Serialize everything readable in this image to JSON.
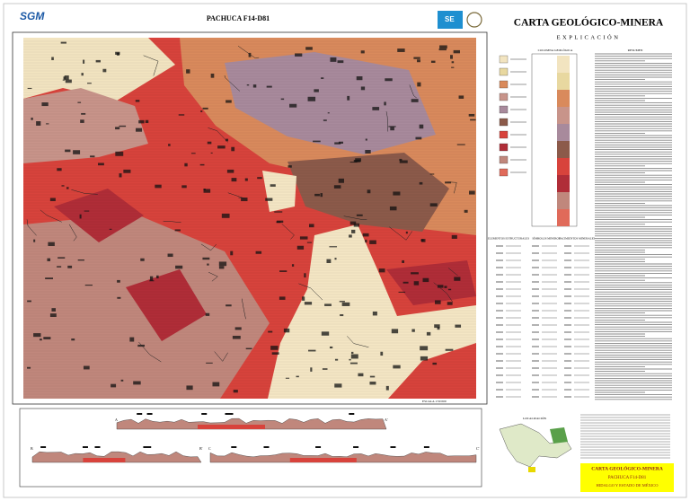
{
  "header": {
    "logo": "SGM",
    "title": "PACHUCA F14-D81",
    "agency": "SE"
  },
  "panel": {
    "title": "CARTA GEOLÓGICO-MINERA",
    "subtitle": "EXPLICACIÓN",
    "column_title": "COLUMNA GEOLÓGICA",
    "summary_title": "RESUMEN",
    "sections": [
      "ELEMENTOS ESTRUCTURALES",
      "SÍMBOLOS MINEROS",
      "YACIMIENTOS MINERALES"
    ]
  },
  "scale": "ESCALA 1:50 000",
  "cross_sections": {
    "labels": [
      "A",
      "A'",
      "B",
      "B'",
      "C",
      "C'"
    ]
  },
  "location": {
    "title": "LOCALIZACIÓN"
  },
  "footer_box": {
    "lines": [
      "CARTA GEOLÓGICO-MINERA",
      "PACHUCA F14-D81",
      "HIDALGO Y ESTADO DE MÉXICO"
    ]
  }
}
